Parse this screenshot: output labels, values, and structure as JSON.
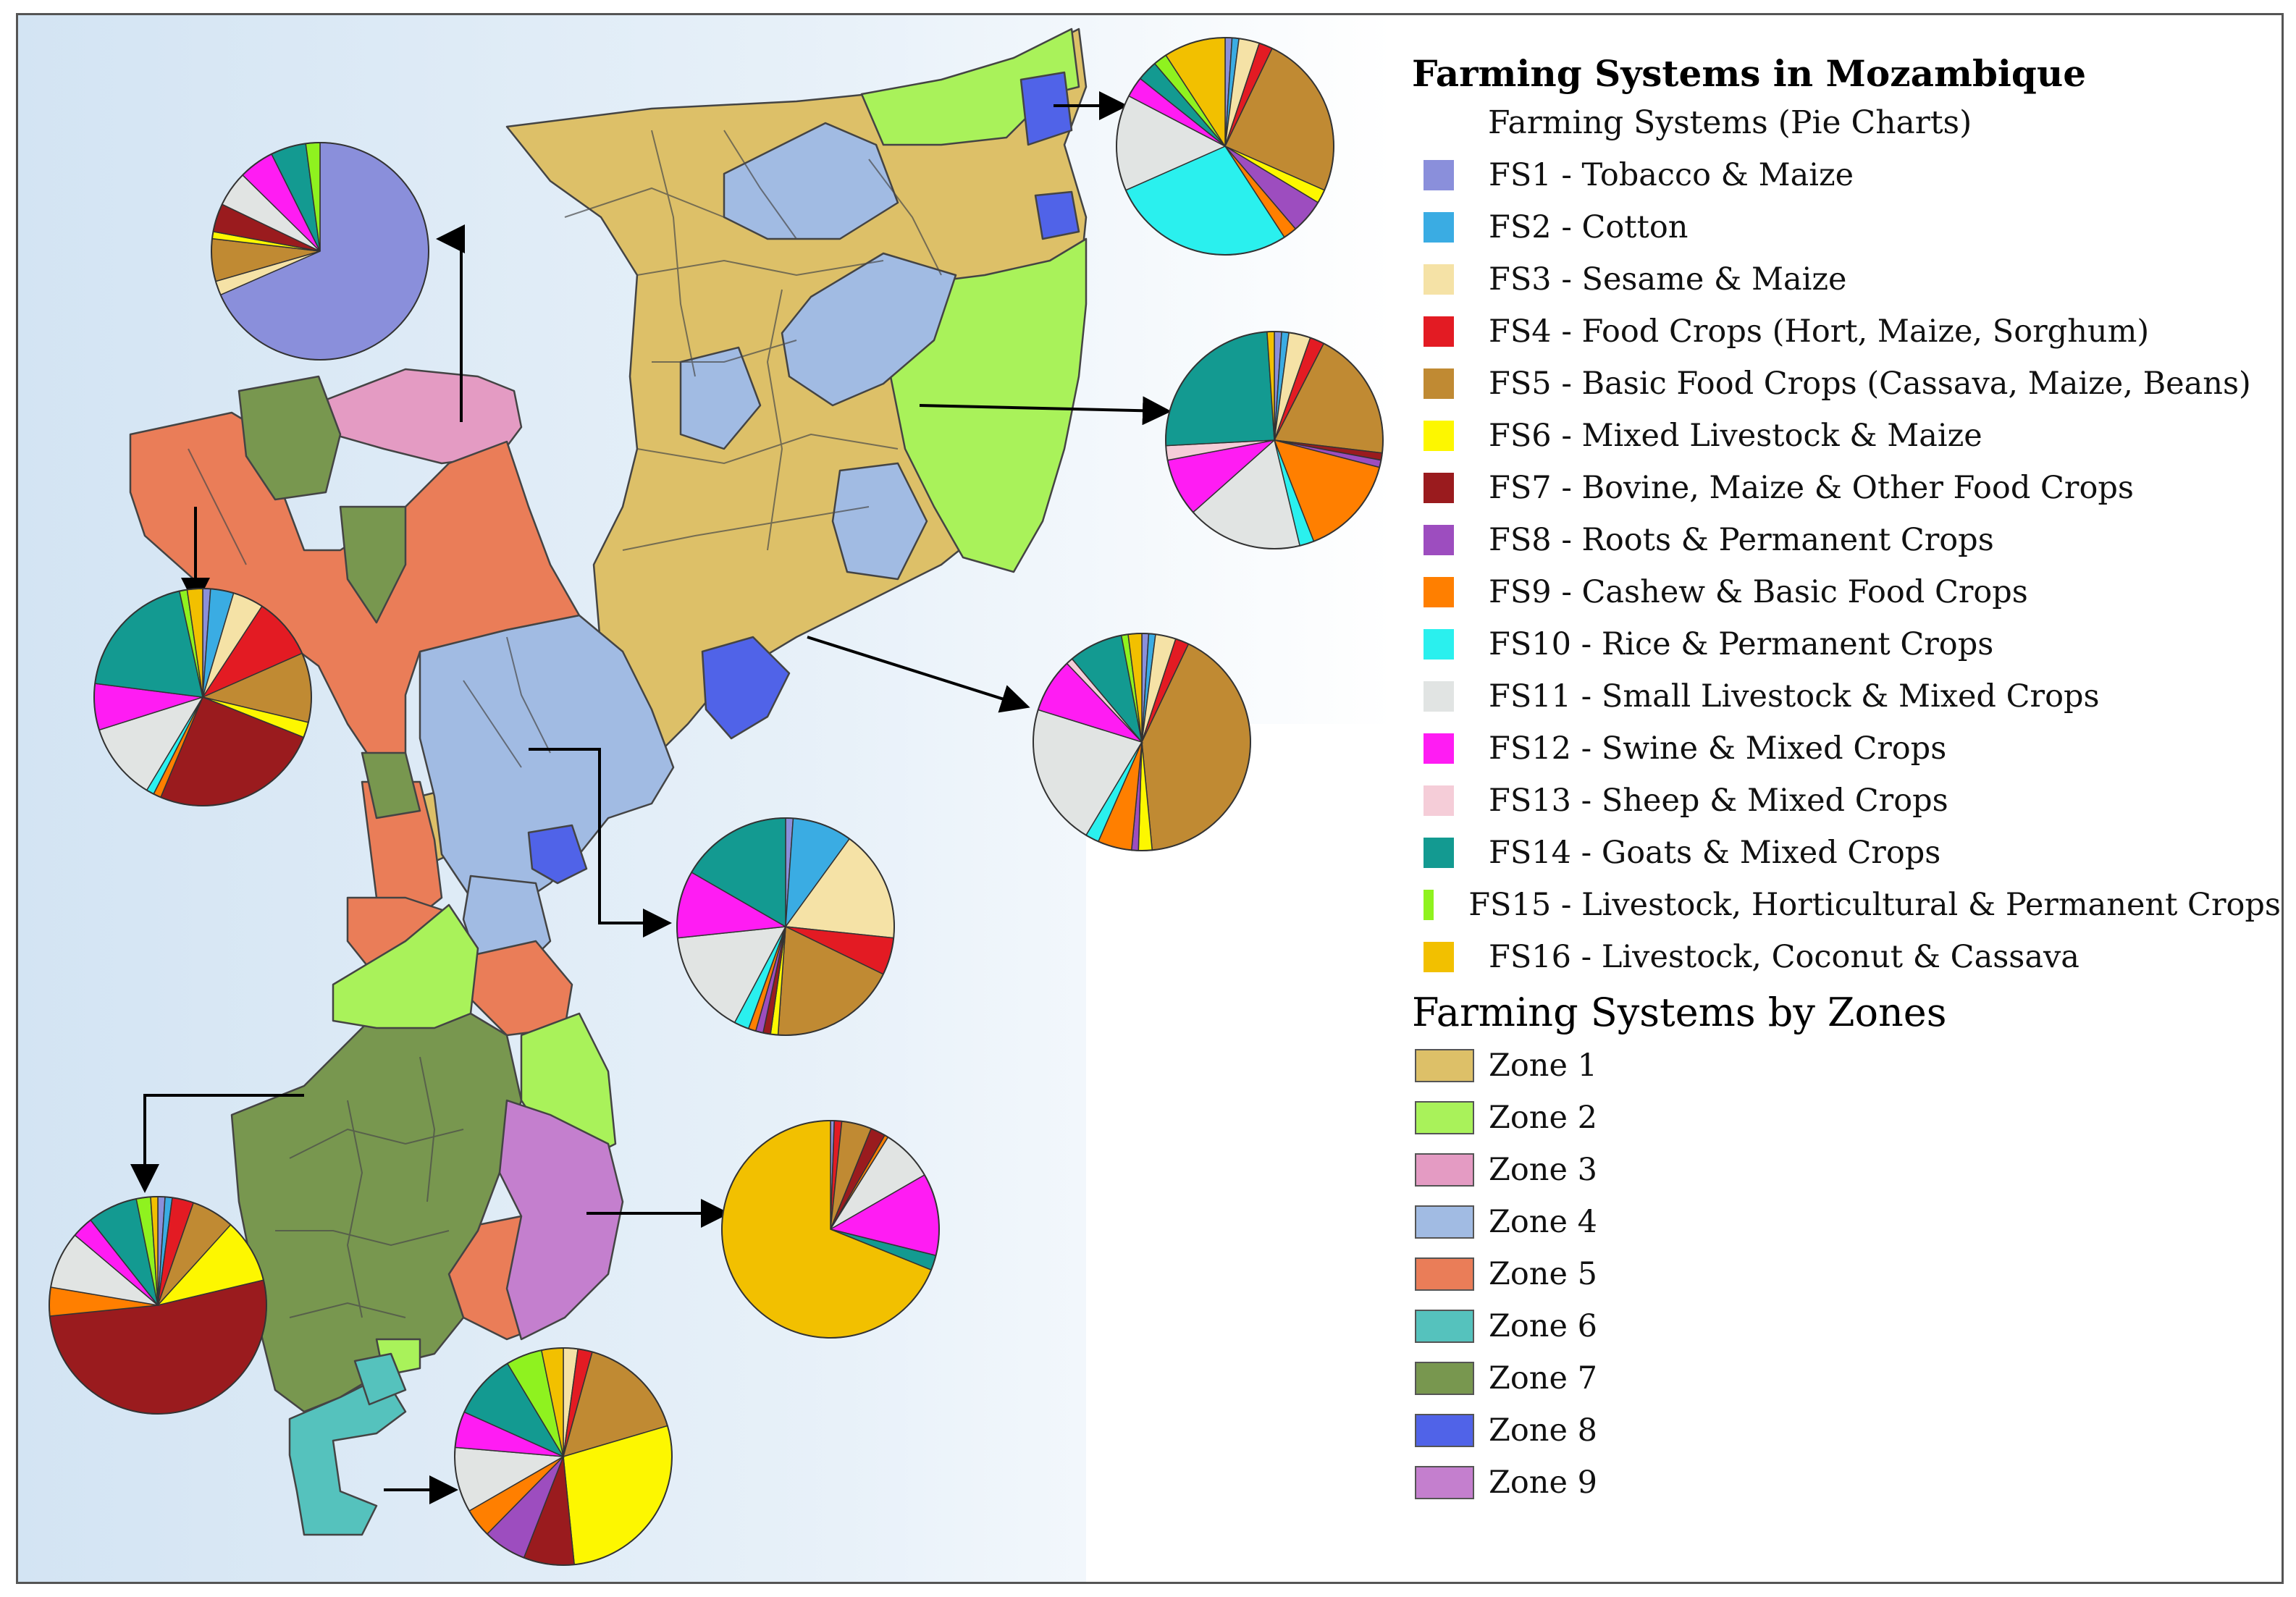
{
  "map": {
    "title": "Farming Systems in Mozambique",
    "pie_legend_title": "Farming Systems (Pie Charts)",
    "zone_legend_title": "Farming Systems by Zones",
    "farming_systems": [
      {
        "code": "FS1",
        "label": "FS1 - Tobacco & Maize",
        "color": "#8a8fdb"
      },
      {
        "code": "FS2",
        "label": "FS2 - Cotton",
        "color": "#3aace3"
      },
      {
        "code": "FS3",
        "label": "FS3 - Sesame & Maize",
        "color": "#f5e2a6"
      },
      {
        "code": "FS4",
        "label": "FS4 - Food Crops (Hort, Maize, Sorghum)",
        "color": "#e31b23"
      },
      {
        "code": "FS5",
        "label": "FS5 - Basic Food Crops (Cassava, Maize, Beans)",
        "color": "#c08a33"
      },
      {
        "code": "FS6",
        "label": "FS6 - Mixed Livestock & Maize",
        "color": "#fdf700"
      },
      {
        "code": "FS7",
        "label": "FS7 - Bovine, Maize & Other Food Crops",
        "color": "#9a1b1e"
      },
      {
        "code": "FS8",
        "label": "FS8 - Roots & Permanent Crops",
        "color": "#9d4dbf"
      },
      {
        "code": "FS9",
        "label": "FS9 - Cashew & Basic Food Crops",
        "color": "#ff7f00"
      },
      {
        "code": "FS10",
        "label": "FS10 - Rice & Permanent Crops",
        "color": "#2af0ee"
      },
      {
        "code": "FS11",
        "label": "FS11 - Small Livestock & Mixed Crops",
        "color": "#e1e4e3"
      },
      {
        "code": "FS12",
        "label": "FS12 - Swine & Mixed Crops",
        "color": "#ff1cf3"
      },
      {
        "code": "FS13",
        "label": "FS13 - Sheep & Mixed Crops",
        "color": "#f5cdd8"
      },
      {
        "code": "FS14",
        "label": "FS14 - Goats & Mixed Crops",
        "color": "#139a91"
      },
      {
        "code": "FS15",
        "label": "FS15 - Livestock, Horticultural & Permanent Crops",
        "color": "#8ff21f"
      },
      {
        "code": "FS16",
        "label": "FS16 - Livestock, Coconut & Cassava",
        "color": "#f2c000"
      }
    ],
    "zones": [
      {
        "label": "Zone 1",
        "color": "#ddc068"
      },
      {
        "label": "Zone 2",
        "color": "#a9f25a"
      },
      {
        "label": "Zone 3",
        "color": "#e49bc3"
      },
      {
        "label": "Zone 4",
        "color": "#a1bbe3"
      },
      {
        "label": "Zone 5",
        "color": "#ea7d58"
      },
      {
        "label": "Zone 6",
        "color": "#55c2bd"
      },
      {
        "label": "Zone 7",
        "color": "#78974f"
      },
      {
        "label": "Zone 8",
        "color": "#5063e8"
      },
      {
        "label": "Zone 9",
        "color": "#c47fce"
      }
    ],
    "pies": [
      {
        "name": "pie-zone-3",
        "zone": "Zone 3",
        "values": {
          "FS1": 65,
          "FS3": 2,
          "FS5": 6,
          "FS6": 1,
          "FS7": 4,
          "FS11": 5,
          "FS12": 5,
          "FS14": 5,
          "FS15": 2
        }
      },
      {
        "name": "pie-zone-5",
        "zone": "Zone 5",
        "values": {
          "FS1": 1,
          "FS2": 3,
          "FS3": 4,
          "FS4": 8,
          "FS5": 9,
          "FS6": 2,
          "FS7": 22,
          "FS9": 1,
          "FS10": 1,
          "FS11": 10,
          "FS12": 6,
          "FS14": 17,
          "FS15": 1,
          "FS16": 2
        }
      },
      {
        "name": "pie-zone-7",
        "zone": "Zone 7",
        "values": {
          "FS1": 1,
          "FS2": 1,
          "FS4": 3,
          "FS5": 6,
          "FS6": 9,
          "FS7": 49,
          "FS9": 4,
          "FS11": 8,
          "FS12": 3,
          "FS14": 7,
          "FS15": 2,
          "FS16": 1
        }
      },
      {
        "name": "pie-zone-6",
        "zone": "Zone 6",
        "values": {
          "FS3": 2,
          "FS4": 2,
          "FS5": 15,
          "FS6": 26,
          "FS7": 7,
          "FS8": 6,
          "FS9": 4,
          "FS11": 9,
          "FS12": 5,
          "FS14": 9,
          "FS15": 5,
          "FS16": 3
        }
      },
      {
        "name": "pie-zone-9",
        "zone": "Zone 9",
        "values": {
          "FS1": 0.5,
          "FS5": 4,
          "FS7": 2,
          "FS4": 1,
          "FS9": 0.5,
          "FS11": 7,
          "FS12": 11,
          "FS14": 2,
          "FS16": 62
        }
      },
      {
        "name": "pie-zone-4",
        "zone": "Zone 4",
        "values": {
          "FS1": 1,
          "FS2": 8,
          "FS3": 15,
          "FS4": 5,
          "FS5": 17,
          "FS6": 1,
          "FS7": 1,
          "FS8": 1,
          "FS9": 1,
          "FS10": 2,
          "FS11": 14,
          "FS12": 9,
          "FS14": 15
        }
      },
      {
        "name": "pie-zone-1",
        "zone": "Zone 1",
        "values": {
          "FS1": 1,
          "FS2": 1,
          "FS3": 3,
          "FS4": 2,
          "FS5": 41,
          "FS6": 2,
          "FS8": 1,
          "FS9": 5,
          "FS10": 2,
          "FS11": 21,
          "FS12": 8,
          "FS13": 1,
          "FS14": 8,
          "FS15": 1,
          "FS16": 2
        }
      },
      {
        "name": "pie-zone-2",
        "zone": "Zone 2",
        "values": {
          "FS1": 1,
          "FS2": 1,
          "FS3": 3,
          "FS4": 2,
          "FS5": 18,
          "FS7": 1,
          "FS8": 1,
          "FS9": 14,
          "FS10": 2,
          "FS11": 16,
          "FS12": 8,
          "FS13": 2,
          "FS14": 23,
          "FS16": 1
        }
      },
      {
        "name": "pie-zone-8",
        "zone": "Zone 8",
        "values": {
          "FS1": 1,
          "FS2": 1,
          "FS3": 3,
          "FS4": 2,
          "FS5": 24,
          "FS6": 2,
          "FS8": 5,
          "FS9": 2,
          "FS10": 27,
          "FS11": 14,
          "FS12": 3,
          "FS14": 3,
          "FS15": 2,
          "FS16": 9
        }
      }
    ]
  }
}
